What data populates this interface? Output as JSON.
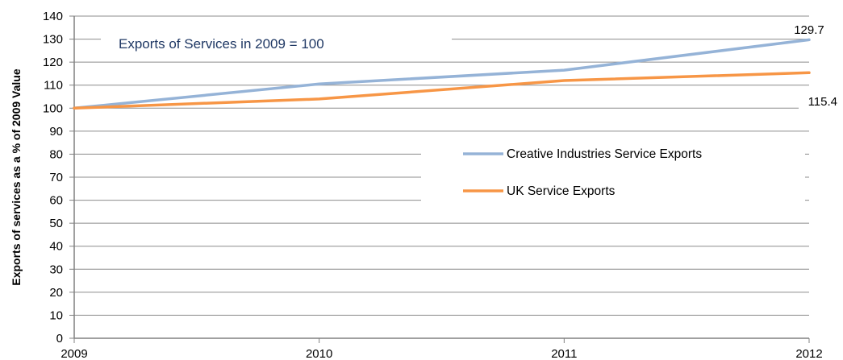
{
  "chart_data": {
    "type": "line",
    "x": [
      "2009",
      "2010",
      "2011",
      "2012"
    ],
    "ylim": [
      0,
      140
    ],
    "yticks": [
      0,
      10,
      20,
      30,
      40,
      50,
      60,
      70,
      80,
      90,
      100,
      110,
      120,
      130,
      140
    ],
    "ylabel": "Exports of services as a % of 2009 Value",
    "xlabel": "",
    "title": "",
    "grid": true,
    "annotation": "Exports of Services in 2009 = 100",
    "legend_position": "right",
    "series": [
      {
        "name": "Creative Industries Service Exports",
        "values": [
          100,
          110.5,
          116.5,
          129.7
        ],
        "color": "#95b3d7"
      },
      {
        "name": "UK Service Exports",
        "values": [
          100,
          104,
          112,
          115.4
        ],
        "color": "#f79646"
      }
    ],
    "end_labels": [
      "129.7",
      "115.4"
    ]
  }
}
